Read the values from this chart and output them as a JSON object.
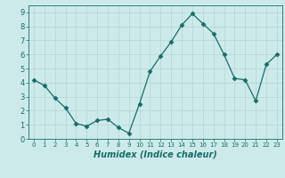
{
  "x": [
    0,
    1,
    2,
    3,
    4,
    5,
    6,
    7,
    8,
    9,
    10,
    11,
    12,
    13,
    14,
    15,
    16,
    17,
    18,
    19,
    20,
    21,
    22,
    23
  ],
  "y": [
    4.2,
    3.8,
    2.9,
    2.2,
    1.1,
    0.9,
    1.3,
    1.4,
    0.8,
    0.4,
    2.5,
    4.8,
    5.9,
    6.9,
    8.1,
    8.9,
    8.2,
    7.5,
    6.0,
    4.3,
    4.2,
    2.7,
    5.3,
    6.0
  ],
  "xlabel": "Humidex (Indice chaleur)",
  "xlim": [
    -0.5,
    23.5
  ],
  "ylim": [
    0,
    9.5
  ],
  "yticks": [
    0,
    1,
    2,
    3,
    4,
    5,
    6,
    7,
    8,
    9
  ],
  "xticks": [
    0,
    1,
    2,
    3,
    4,
    5,
    6,
    7,
    8,
    9,
    10,
    11,
    12,
    13,
    14,
    15,
    16,
    17,
    18,
    19,
    20,
    21,
    22,
    23
  ],
  "line_color": "#1a6b6b",
  "marker": "D",
  "marker_size": 2.5,
  "background_color": "#cdeaea",
  "grid_color": "#b8d8d8",
  "xlabel_color": "#1a6b6b",
  "tick_color": "#1a6b6b",
  "spine_color": "#1a6b6b"
}
